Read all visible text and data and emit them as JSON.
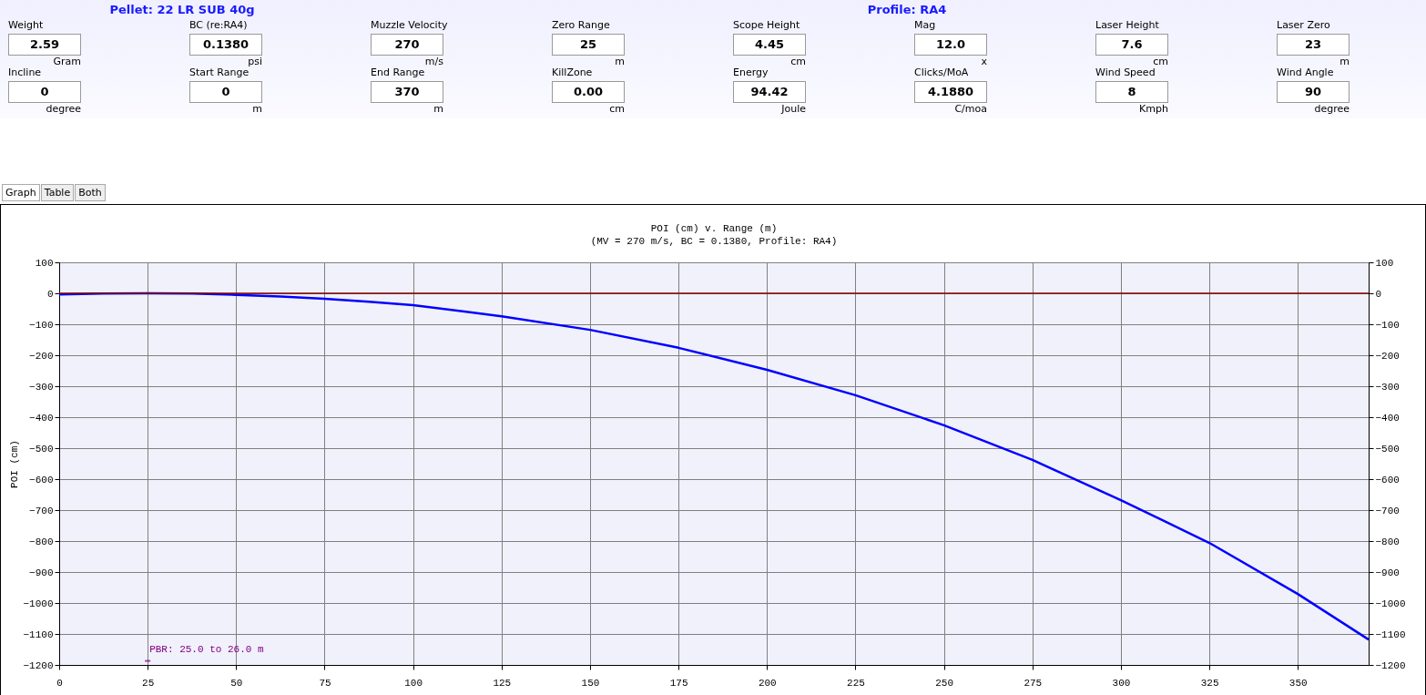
{
  "chart_data": [
    {
      "type": "other",
      "annotations": [
        "Pellet: 22 LR SUB 40g",
        "Profile: RA4",
        "Weight",
        "2.59",
        "Gram",
        "BC (re:RA4)",
        "0.1380",
        "psi",
        "Muzzle Velocity",
        "270",
        "m/s",
        "Zero Range",
        "25",
        "m",
        "Scope Height",
        "4.45",
        "cm",
        "Mag",
        "12.0",
        "x",
        "Laser Height",
        "7.6",
        "cm",
        "Laser Zero",
        "23",
        "m",
        "Incline",
        "0",
        "degree",
        "Start Range",
        "0",
        "m",
        "End Range",
        "370",
        "m",
        "KillZone",
        "0.00",
        "cm",
        "Energy",
        "94.42",
        "Joule",
        "Clicks/MoA",
        "4.1880",
        "C/moa",
        "Wind Speed",
        "8",
        "Kmph",
        "Wind Angle",
        "90",
        "degree",
        "Graph",
        "Table",
        "Both"
      ]
    },
    {
      "type": "line",
      "title": "POI (cm) v. Range (m)",
      "subtitle": "(MV = 270 m/s, BC = 0.1380, Profile: RA4)",
      "ylabel": "POI (cm)",
      "x": [
        0,
        12.5,
        25,
        37.5,
        50,
        62.5,
        75,
        87.5,
        100,
        125,
        150,
        175,
        200,
        225,
        250,
        275,
        300,
        325,
        350,
        370
      ],
      "series": [
        {
          "color": "#0000ff",
          "values": [
            -4,
            -1,
            0,
            -1,
            -5,
            -10,
            -18,
            -27,
            -38,
            -74,
            -118,
            -176,
            -247,
            -329,
            -426,
            -538,
            -668,
            -806,
            -971,
            -1118
          ]
        }
      ],
      "xlim": [
        0,
        370
      ],
      "xticks": [
        0,
        25,
        50,
        75,
        100,
        125,
        150,
        175,
        200,
        225,
        250,
        275,
        300,
        325,
        350
      ],
      "ylim": [
        -1200,
        100
      ],
      "yticks": [
        -1200,
        -1100,
        -1000,
        -900,
        -800,
        -700,
        -600,
        -500,
        -400,
        -300,
        -200,
        -100,
        0,
        100
      ],
      "y2lim": [
        -1200,
        100
      ],
      "y2ticks": [
        -1200,
        -1100,
        -1000,
        -900,
        -800,
        -700,
        -600,
        -500,
        -400,
        -300,
        -200,
        -100,
        0,
        100
      ],
      "ref_lines": [
        {
          "axis": "y",
          "value": 0,
          "color": "#800000"
        }
      ],
      "annotations": [
        {
          "text": "PBR: 25.0 to 26.0 m",
          "x": 25,
          "y": -1187
        }
      ],
      "grid": true,
      "legend": false,
      "marker": "none",
      "line_style": "solid"
    }
  ]
}
